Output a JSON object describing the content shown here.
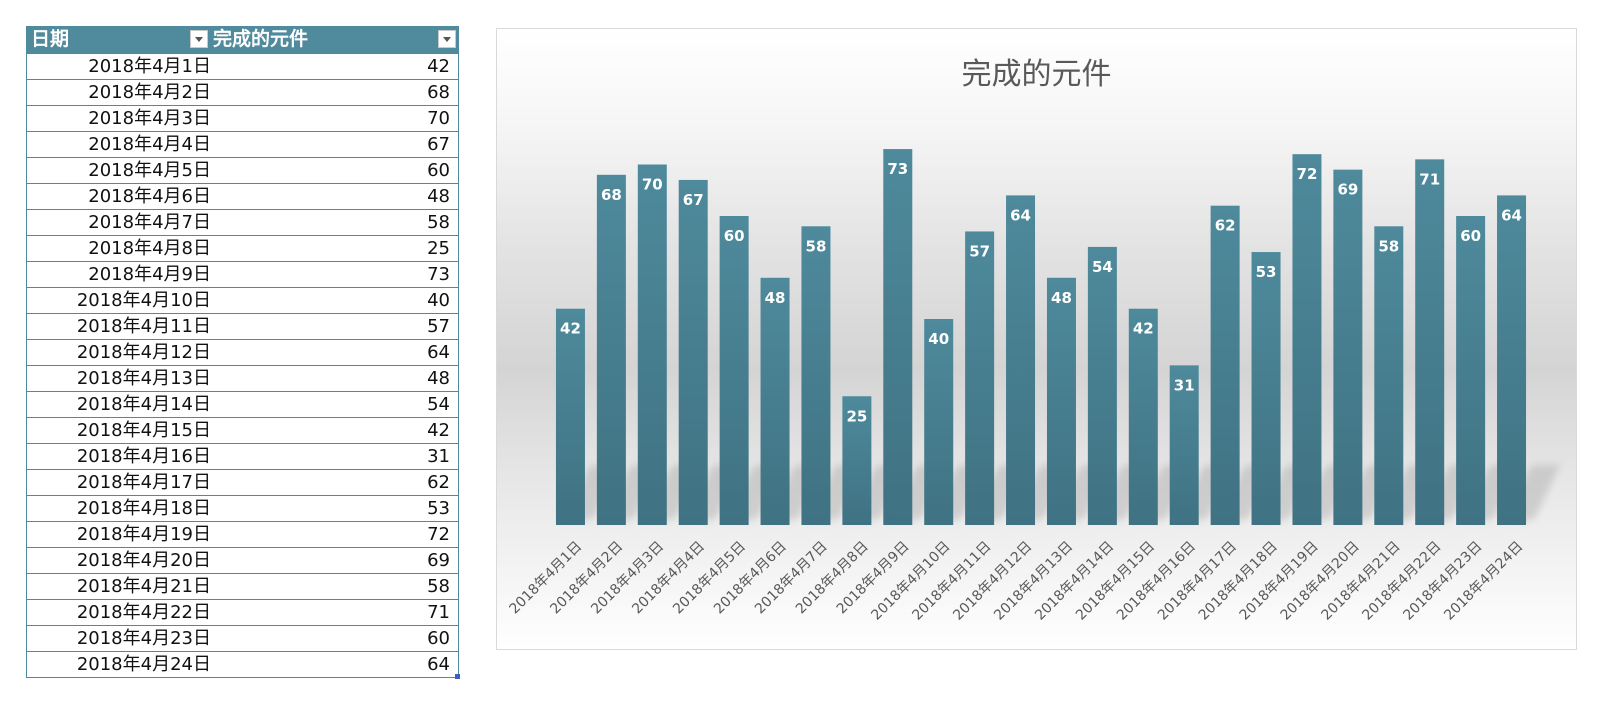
{
  "table": {
    "headers": [
      "日期",
      "完成的元件"
    ],
    "rows": [
      [
        "2018年4月1日",
        "42"
      ],
      [
        "2018年4月2日",
        "68"
      ],
      [
        "2018年4月3日",
        "70"
      ],
      [
        "2018年4月4日",
        "67"
      ],
      [
        "2018年4月5日",
        "60"
      ],
      [
        "2018年4月6日",
        "48"
      ],
      [
        "2018年4月7日",
        "58"
      ],
      [
        "2018年4月8日",
        "25"
      ],
      [
        "2018年4月9日",
        "73"
      ],
      [
        "2018年4月10日",
        "40"
      ],
      [
        "2018年4月11日",
        "57"
      ],
      [
        "2018年4月12日",
        "64"
      ],
      [
        "2018年4月13日",
        "48"
      ],
      [
        "2018年4月14日",
        "54"
      ],
      [
        "2018年4月15日",
        "42"
      ],
      [
        "2018年4月16日",
        "31"
      ],
      [
        "2018年4月17日",
        "62"
      ],
      [
        "2018年4月18日",
        "53"
      ],
      [
        "2018年4月19日",
        "72"
      ],
      [
        "2018年4月20日",
        "69"
      ],
      [
        "2018年4月21日",
        "58"
      ],
      [
        "2018年4月22日",
        "71"
      ],
      [
        "2018年4月23日",
        "60"
      ],
      [
        "2018年4月24日",
        "64"
      ]
    ]
  },
  "colors": {
    "header_bg": "#4f8b9c",
    "bar_top": "#4e8a9c",
    "bar_bottom": "#3f7282",
    "label_text": "#ffffff",
    "axis_text": "#595959"
  },
  "chart_data": {
    "type": "bar",
    "title": "完成的元件",
    "xlabel": "",
    "ylabel": "",
    "ylim": [
      0,
      80
    ],
    "grid": false,
    "legend": "none",
    "data_labels": true,
    "categories": [
      "2018年4月1日",
      "2018年4月2日",
      "2018年4月3日",
      "2018年4月4日",
      "2018年4月5日",
      "2018年4月6日",
      "2018年4月7日",
      "2018年4月8日",
      "2018年4月9日",
      "2018年4月10日",
      "2018年4月11日",
      "2018年4月12日",
      "2018年4月13日",
      "2018年4月14日",
      "2018年4月15日",
      "2018年4月16日",
      "2018年4月17日",
      "2018年4月18日",
      "2018年4月19日",
      "2018年4月20日",
      "2018年4月21日",
      "2018年4月22日",
      "2018年4月23日",
      "2018年4月24日"
    ],
    "values": [
      42,
      68,
      70,
      67,
      60,
      48,
      58,
      25,
      73,
      40,
      57,
      64,
      48,
      54,
      42,
      31,
      62,
      53,
      72,
      69,
      58,
      71,
      60,
      64
    ]
  }
}
